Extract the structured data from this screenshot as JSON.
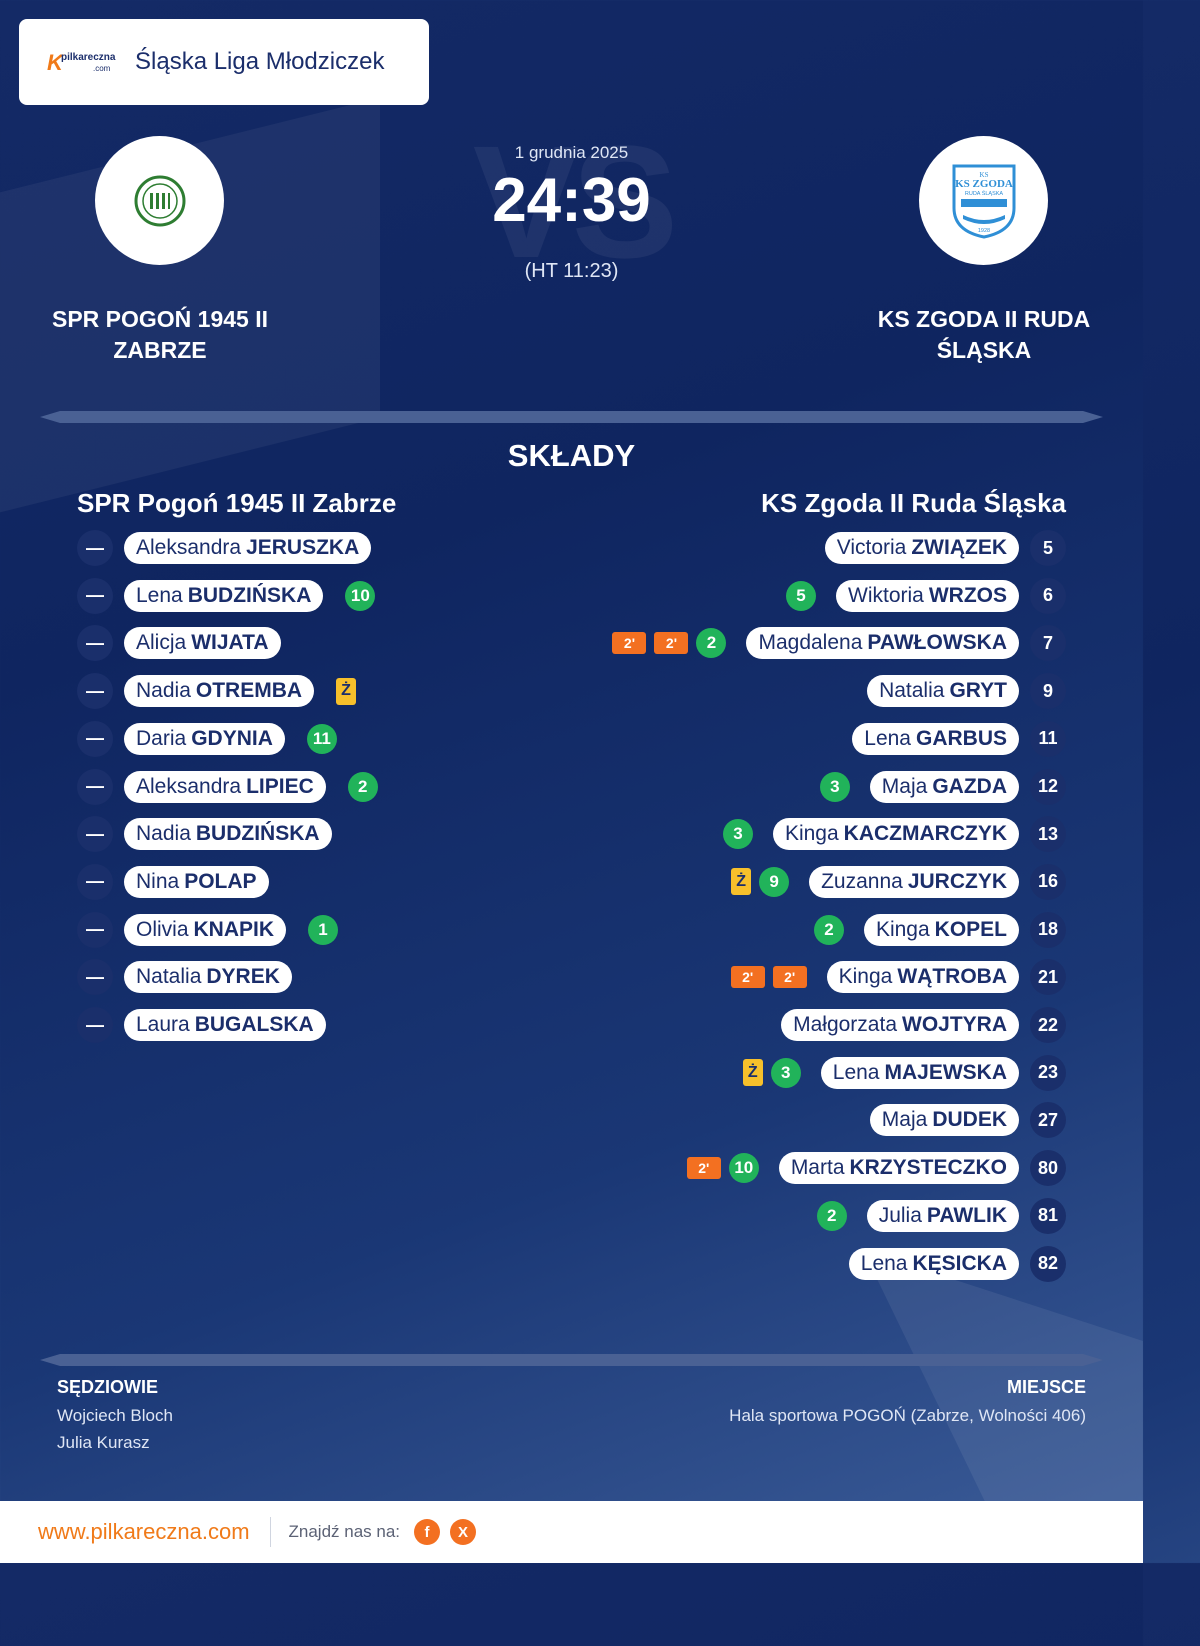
{
  "league": {
    "name": "Śląska Liga Młodziczek",
    "brand_text": "pilkareczna",
    "brand_sub": ".com",
    "brand_mark": "K"
  },
  "match": {
    "date": "1 grudnia 2025",
    "score": "24:39",
    "halftime": "(HT 11:23)",
    "watermark": "VS"
  },
  "home": {
    "name_line1": "SPR POGOŃ 1945 II",
    "name_line2": "ZABRZE",
    "roster_title": "SPR Pogoń 1945 II Zabrze",
    "logo_color": "#2e7d32"
  },
  "away": {
    "name_line1": "KS ZGODA II RUDA",
    "name_line2": "ŚLĄSKA",
    "roster_title": "KS Zgoda II Ruda Śląska",
    "logo_color": "#2f8fd6",
    "logo_text": "KS ZGODA",
    "logo_sub": "RUDA ŚLĄSKA",
    "logo_year": "1928"
  },
  "lineups_title": "SKŁADY",
  "home_players": [
    {
      "num": "—",
      "first": "Aleksandra",
      "last": "JERUSZKA",
      "goals": "",
      "yellow": "",
      "susp": []
    },
    {
      "num": "—",
      "first": "Lena",
      "last": "BUDZIŃSKA",
      "goals": "10",
      "yellow": "",
      "susp": []
    },
    {
      "num": "—",
      "first": "Alicja",
      "last": "WIJATA",
      "goals": "",
      "yellow": "",
      "susp": []
    },
    {
      "num": "—",
      "first": "Nadia",
      "last": "OTREMBA",
      "goals": "",
      "yellow": "Ż",
      "susp": []
    },
    {
      "num": "—",
      "first": "Daria",
      "last": "GDYNIA",
      "goals": "11",
      "yellow": "",
      "susp": []
    },
    {
      "num": "—",
      "first": "Aleksandra",
      "last": "LIPIEC",
      "goals": "2",
      "yellow": "",
      "susp": []
    },
    {
      "num": "—",
      "first": "Nadia",
      "last": "BUDZIŃSKA",
      "goals": "",
      "yellow": "",
      "susp": []
    },
    {
      "num": "—",
      "first": "Nina",
      "last": "POLAP",
      "goals": "",
      "yellow": "",
      "susp": []
    },
    {
      "num": "—",
      "first": "Olivia",
      "last": "KNAPIK",
      "goals": "1",
      "yellow": "",
      "susp": []
    },
    {
      "num": "—",
      "first": "Natalia",
      "last": "DYREK",
      "goals": "",
      "yellow": "",
      "susp": []
    },
    {
      "num": "—",
      "first": "Laura",
      "last": "BUGALSKA",
      "goals": "",
      "yellow": "",
      "susp": []
    }
  ],
  "away_players": [
    {
      "num": "5",
      "first": "Victoria",
      "last": "ZWIĄZEK",
      "goals": "",
      "yellow": "",
      "susp": []
    },
    {
      "num": "6",
      "first": "Wiktoria",
      "last": "WRZOS",
      "goals": "5",
      "yellow": "",
      "susp": []
    },
    {
      "num": "7",
      "first": "Magdalena",
      "last": "PAWŁOWSKA",
      "goals": "2",
      "yellow": "",
      "susp": [
        "2'",
        "2'"
      ]
    },
    {
      "num": "9",
      "first": "Natalia",
      "last": "GRYT",
      "goals": "",
      "yellow": "",
      "susp": []
    },
    {
      "num": "11",
      "first": "Lena",
      "last": "GARBUS",
      "goals": "",
      "yellow": "",
      "susp": []
    },
    {
      "num": "12",
      "first": "Maja",
      "last": "GAZDA",
      "goals": "3",
      "yellow": "",
      "susp": []
    },
    {
      "num": "13",
      "first": "Kinga",
      "last": "KACZMARCZYK",
      "goals": "3",
      "yellow": "",
      "susp": []
    },
    {
      "num": "16",
      "first": "Zuzanna",
      "last": "JURCZYK",
      "goals": "9",
      "yellow": "Ż",
      "susp": []
    },
    {
      "num": "18",
      "first": "Kinga",
      "last": "KOPEL",
      "goals": "2",
      "yellow": "",
      "susp": []
    },
    {
      "num": "21",
      "first": "Kinga",
      "last": "WĄTROBA",
      "goals": "",
      "yellow": "",
      "susp": [
        "2'",
        "2'"
      ]
    },
    {
      "num": "22",
      "first": "Małgorzata",
      "last": "WOJTYRA",
      "goals": "",
      "yellow": "",
      "susp": []
    },
    {
      "num": "23",
      "first": "Lena",
      "last": "MAJEWSKA",
      "goals": "3",
      "yellow": "Ż",
      "susp": []
    },
    {
      "num": "27",
      "first": "Maja",
      "last": "DUDEK",
      "goals": "",
      "yellow": "",
      "susp": []
    },
    {
      "num": "80",
      "first": "Marta",
      "last": "KRZYSTECZKO",
      "goals": "10",
      "yellow": "",
      "susp": [
        "2'"
      ]
    },
    {
      "num": "81",
      "first": "Julia",
      "last": "PAWLIK",
      "goals": "2",
      "yellow": "",
      "susp": []
    },
    {
      "num": "82",
      "first": "Lena",
      "last": "KĘSICKA",
      "goals": "",
      "yellow": "",
      "susp": []
    }
  ],
  "officials": {
    "title": "SĘDZIOWIE",
    "names": [
      "Wojciech Bloch",
      "Julia Kurasz"
    ]
  },
  "venue": {
    "title": "MIEJSCE",
    "text": "Hala sportowa POGOŃ (Zabrze, Wolności 406)"
  },
  "footer": {
    "url": "www.pilkareczna.com",
    "find_us": "Znajdź nas na:",
    "facebook": "f",
    "x": "X"
  },
  "colors": {
    "orange": "#f37021",
    "navy": "#1b2e6b",
    "goal_green": "#21b35a",
    "yellow_card": "#f7c02b"
  }
}
